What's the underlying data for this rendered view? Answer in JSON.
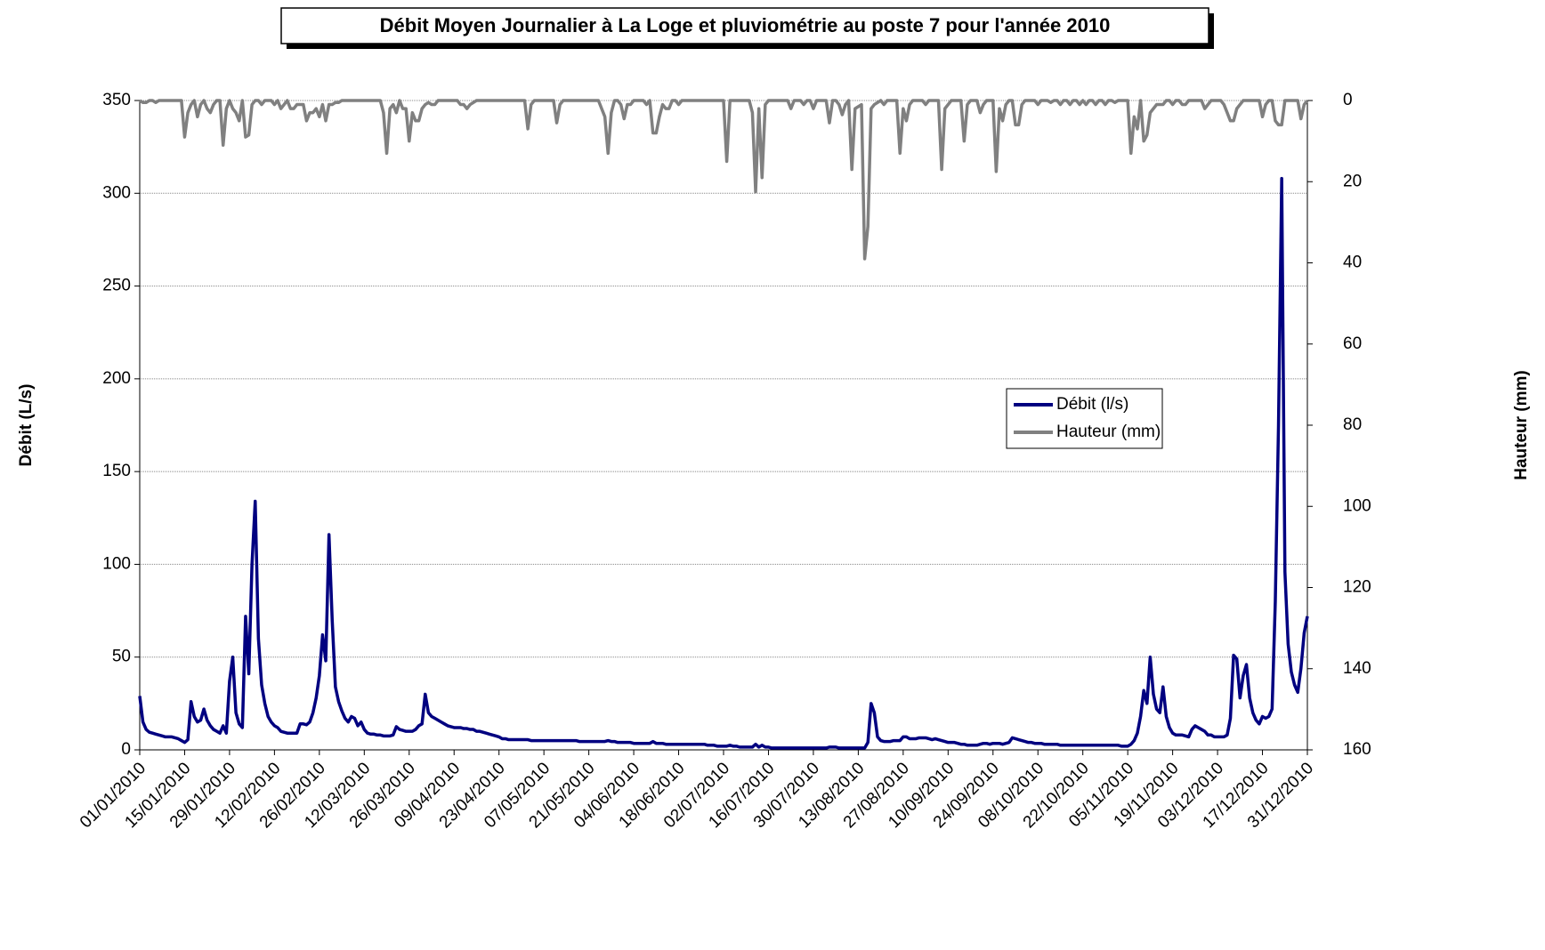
{
  "chart_data": {
    "type": "line",
    "title": "Débit Moyen Journalier à La Loge et pluviométrie au poste 7 pour l'année 2010",
    "y_label": "Débit (L/s)",
    "y2_label": "Hauteur (mm)",
    "categories": [
      "01/01/2010",
      null,
      null,
      null,
      null,
      null,
      null,
      null,
      null,
      null,
      null,
      null,
      null,
      null,
      "15/01/2010",
      null,
      null,
      null,
      null,
      null,
      null,
      null,
      null,
      null,
      null,
      null,
      null,
      null,
      "29/01/2010",
      null,
      null,
      null,
      null,
      null,
      null,
      null,
      null,
      null,
      null,
      null,
      null,
      null,
      "12/02/2010",
      null,
      null,
      null,
      null,
      null,
      null,
      null,
      null,
      null,
      null,
      null,
      null,
      null,
      "26/02/2010",
      null,
      null,
      null,
      null,
      null,
      null,
      null,
      null,
      null,
      null,
      null,
      null,
      null,
      "12/03/2010",
      null,
      null,
      null,
      null,
      null,
      null,
      null,
      null,
      null,
      null,
      null,
      null,
      null,
      "26/03/2010",
      null,
      null,
      null,
      null,
      null,
      null,
      null,
      null,
      null,
      null,
      null,
      null,
      null,
      "09/04/2010",
      null,
      null,
      null,
      null,
      null,
      null,
      null,
      null,
      null,
      null,
      null,
      null,
      null,
      "23/04/2010",
      null,
      null,
      null,
      null,
      null,
      null,
      null,
      null,
      null,
      null,
      null,
      null,
      null,
      "07/05/2010",
      null,
      null,
      null,
      null,
      null,
      null,
      null,
      null,
      null,
      null,
      null,
      null,
      null,
      "21/05/2010",
      null,
      null,
      null,
      null,
      null,
      null,
      null,
      null,
      null,
      null,
      null,
      null,
      null,
      "04/06/2010",
      null,
      null,
      null,
      null,
      null,
      null,
      null,
      null,
      null,
      null,
      null,
      null,
      null,
      "18/06/2010",
      null,
      null,
      null,
      null,
      null,
      null,
      null,
      null,
      null,
      null,
      null,
      null,
      null,
      "02/07/2010",
      null,
      null,
      null,
      null,
      null,
      null,
      null,
      null,
      null,
      null,
      null,
      null,
      null,
      "16/07/2010",
      null,
      null,
      null,
      null,
      null,
      null,
      null,
      null,
      null,
      null,
      null,
      null,
      null,
      "30/07/2010",
      null,
      null,
      null,
      null,
      null,
      null,
      null,
      null,
      null,
      null,
      null,
      null,
      null,
      "13/08/2010",
      null,
      null,
      null,
      null,
      null,
      null,
      null,
      null,
      null,
      null,
      null,
      null,
      null,
      "27/08/2010",
      null,
      null,
      null,
      null,
      null,
      null,
      null,
      null,
      null,
      null,
      null,
      null,
      null,
      "10/09/2010",
      null,
      null,
      null,
      null,
      null,
      null,
      null,
      null,
      null,
      null,
      null,
      null,
      null,
      "24/09/2010",
      null,
      null,
      null,
      null,
      null,
      null,
      null,
      null,
      null,
      null,
      null,
      null,
      null,
      "08/10/2010",
      null,
      null,
      null,
      null,
      null,
      null,
      null,
      null,
      null,
      null,
      null,
      null,
      null,
      "22/10/2010",
      null,
      null,
      null,
      null,
      null,
      null,
      null,
      null,
      null,
      null,
      null,
      null,
      null,
      "05/11/2010",
      null,
      null,
      null,
      null,
      null,
      null,
      null,
      null,
      null,
      null,
      null,
      null,
      null,
      "19/11/2010",
      null,
      null,
      null,
      null,
      null,
      null,
      null,
      null,
      null,
      null,
      null,
      null,
      null,
      "03/12/2010",
      null,
      null,
      null,
      null,
      null,
      null,
      null,
      null,
      null,
      null,
      null,
      null,
      null,
      "17/12/2010",
      null,
      null,
      null,
      null,
      null,
      null,
      null,
      null,
      null,
      null,
      null,
      null,
      null,
      "31/12/2010"
    ],
    "series": [
      {
        "name": "Débit (l/s)",
        "color": "#000080",
        "axis": "y",
        "values": [
          29,
          15,
          11,
          9.5,
          9,
          8.5,
          8,
          7.5,
          7,
          7,
          7,
          6.5,
          6,
          5,
          4,
          5.5,
          26,
          18,
          15,
          16,
          22,
          16,
          13,
          11,
          10,
          9,
          13,
          9,
          37,
          50,
          20,
          14,
          12,
          72,
          41,
          100,
          134,
          60,
          35,
          25,
          18,
          15,
          13,
          12,
          10,
          9.5,
          9,
          9,
          9,
          9,
          14,
          14,
          13.5,
          15,
          20,
          28,
          40,
          62,
          48,
          116,
          70,
          34,
          26,
          21,
          17,
          15,
          18,
          17,
          13,
          15,
          11,
          9,
          8.5,
          8.5,
          8,
          8,
          7.5,
          7.5,
          7.5,
          8,
          12.5,
          11,
          10.5,
          10,
          10,
          10,
          11,
          13,
          14,
          30,
          20,
          18,
          17,
          16,
          15,
          14,
          13,
          12.5,
          12,
          12,
          12,
          11.5,
          11.5,
          11,
          11,
          10,
          10,
          9.5,
          9,
          8.5,
          8,
          7.5,
          7,
          6,
          6,
          5.5,
          5.5,
          5.5,
          5.5,
          5.5,
          5.5,
          5.5,
          5,
          5,
          5,
          5,
          5,
          5,
          5,
          5,
          5,
          5,
          5,
          5,
          5,
          5,
          5,
          4.5,
          4.5,
          4.5,
          4.5,
          4.5,
          4.5,
          4.5,
          4.5,
          4.5,
          5,
          4.5,
          4.5,
          4,
          4,
          4,
          4,
          4,
          3.5,
          3.5,
          3.5,
          3.5,
          3.5,
          3.5,
          4.5,
          3.5,
          3.5,
          3.5,
          3,
          3,
          3,
          3,
          3,
          3,
          3,
          3,
          3,
          3,
          3,
          3,
          3,
          2.5,
          2.5,
          2.5,
          2,
          2,
          2,
          2,
          2.5,
          2,
          2,
          1.5,
          1.5,
          1.5,
          1.5,
          1.5,
          3,
          1.5,
          2.5,
          1.5,
          1.5,
          1,
          1,
          1,
          1,
          1,
          1,
          1,
          1,
          1,
          1,
          1,
          1,
          1,
          1,
          1,
          1,
          1,
          1,
          1.5,
          1.5,
          1.5,
          1,
          1,
          1,
          1,
          1,
          1,
          1,
          1,
          1,
          4,
          25,
          20,
          7,
          5,
          4.5,
          4.5,
          4.5,
          5,
          5,
          5,
          7,
          7,
          6,
          6,
          6,
          6.5,
          6.5,
          6.5,
          6,
          5.5,
          6,
          5.5,
          5,
          4.5,
          4,
          4,
          4,
          3.5,
          3,
          3,
          2.5,
          2.5,
          2.5,
          2.5,
          3,
          3.5,
          3.5,
          3,
          3.5,
          3.5,
          3.5,
          3,
          3.5,
          4,
          6.5,
          6,
          5.5,
          5,
          4.5,
          4,
          4,
          3.5,
          3.5,
          3.5,
          3,
          3,
          3,
          3,
          3,
          2.5,
          2.5,
          2.5,
          2.5,
          2.5,
          2.5,
          2.5,
          2.5,
          2.5,
          2.5,
          2.5,
          2.5,
          2.5,
          2.5,
          2.5,
          2.5,
          2.5,
          2.5,
          2.5,
          2,
          2,
          2,
          3,
          5,
          9,
          18,
          32,
          25,
          50,
          30,
          22,
          20,
          34,
          18,
          12,
          9,
          8,
          8,
          8,
          7.5,
          7,
          11,
          13,
          12,
          11,
          10,
          8,
          8,
          7,
          7,
          7,
          7,
          8,
          17,
          51,
          49,
          28,
          40,
          46,
          28,
          20,
          16,
          14,
          18,
          17,
          18,
          22,
          80,
          175,
          308,
          96,
          57,
          42,
          35,
          31,
          44,
          63,
          72
        ]
      },
      {
        "name": "Hauteur (mm)",
        "color": "#808080",
        "axis": "y2",
        "values": [
          0,
          0.5,
          0.5,
          0,
          0,
          0.5,
          0,
          0,
          0,
          0,
          0,
          0,
          0,
          0,
          9,
          3,
          1,
          0,
          4,
          1,
          0,
          2,
          3,
          1,
          0,
          0,
          11,
          2,
          0,
          2,
          3,
          5,
          0,
          9,
          8.5,
          1,
          0,
          0,
          1,
          0,
          0,
          0,
          1,
          0,
          2,
          1,
          0,
          2,
          2,
          1,
          1,
          1,
          5,
          3,
          3,
          2,
          4,
          1,
          5,
          1,
          1,
          0.5,
          0.5,
          0,
          0,
          0,
          0,
          0,
          0,
          0,
          0,
          0,
          0,
          0,
          0,
          0,
          3,
          13,
          2,
          1,
          3,
          0,
          2,
          2,
          10,
          3,
          5,
          5,
          2,
          1,
          0.5,
          1,
          1,
          0,
          0,
          0,
          0,
          0,
          0,
          0,
          1,
          1,
          2,
          1,
          0.5,
          0,
          0,
          0,
          0,
          0,
          0,
          0,
          0,
          0,
          0,
          0,
          0,
          0,
          0,
          0,
          0,
          7,
          1,
          0,
          0,
          0,
          0,
          0,
          0,
          0,
          5.5,
          1,
          0,
          0,
          0,
          0,
          0,
          0,
          0,
          0,
          0,
          0,
          0,
          0,
          2,
          4,
          13,
          3,
          0,
          0,
          1,
          4.5,
          1,
          1,
          0,
          0,
          0,
          0,
          1,
          0,
          8,
          8,
          4,
          1,
          2,
          2,
          0,
          0,
          1,
          0,
          0,
          0,
          0,
          0,
          0,
          0,
          0,
          0,
          0,
          0,
          0,
          0,
          0,
          15,
          0,
          0,
          0,
          0,
          0,
          0,
          0,
          3,
          22.5,
          2,
          19,
          1,
          0,
          0,
          0,
          0,
          0,
          0,
          0,
          2,
          0,
          0,
          0,
          1,
          0,
          0,
          2,
          0,
          0,
          0,
          0,
          5.5,
          0,
          0,
          1,
          3.5,
          1,
          0,
          17,
          2,
          1.5,
          1,
          39,
          31,
          2,
          1,
          0.5,
          0,
          1,
          0,
          0,
          0,
          0,
          13,
          2,
          5,
          1,
          0,
          0,
          0,
          0,
          1,
          0,
          0,
          0,
          0,
          17,
          2,
          1,
          0,
          0,
          0,
          0,
          10,
          1,
          0,
          0,
          0,
          3,
          1,
          0,
          0,
          0,
          17.5,
          2,
          5,
          1,
          0,
          0,
          6,
          6,
          1,
          0,
          0,
          0,
          0,
          1,
          0,
          0,
          0,
          0.5,
          0,
          0,
          1,
          0,
          0,
          1,
          0,
          0,
          1,
          0,
          1,
          0,
          0,
          1,
          0,
          0,
          1,
          0,
          0,
          0.5,
          0,
          0,
          0,
          0,
          13,
          4,
          7,
          0,
          10,
          8.5,
          3,
          2,
          1,
          1,
          1,
          0,
          0,
          1,
          0,
          0,
          1,
          1,
          0,
          0,
          0,
          0,
          0,
          2,
          1,
          0,
          0,
          0,
          0,
          1,
          3,
          5,
          5,
          2,
          1,
          0,
          0,
          0,
          0,
          0,
          0,
          4,
          1,
          0,
          0,
          5,
          6,
          6,
          0,
          0,
          0,
          0,
          0,
          4.5,
          1,
          0
        ]
      }
    ],
    "ylim": [
      0,
      350
    ],
    "yticks": [
      0,
      50,
      100,
      150,
      200,
      250,
      300,
      350
    ],
    "y2lim": [
      160,
      0
    ],
    "y2ticks": [
      0,
      20,
      40,
      60,
      80,
      100,
      120,
      140,
      160
    ],
    "grid": true,
    "legend": "center-right"
  }
}
